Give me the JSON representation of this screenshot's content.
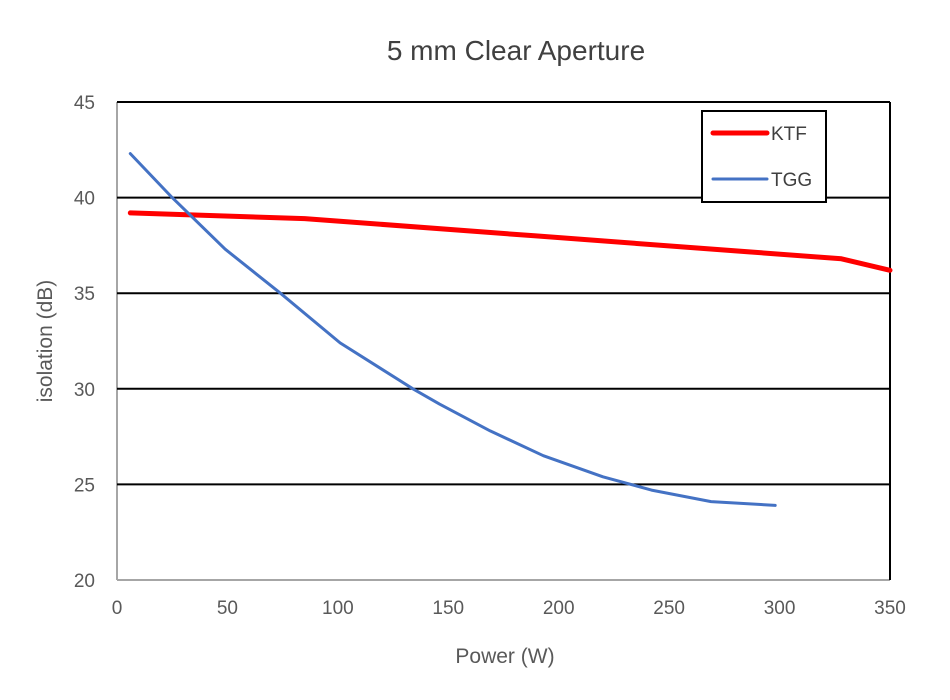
{
  "chart_data": {
    "type": "line",
    "title": "5 mm Clear Aperture",
    "xlabel": "Power (W)",
    "ylabel": "isolation (dB)",
    "xlim": [
      0,
      350
    ],
    "ylim": [
      20,
      45
    ],
    "xticks": [
      "0",
      "50",
      "100",
      "150",
      "200",
      "250",
      "300",
      "350"
    ],
    "yticks": [
      "20",
      "25",
      "30",
      "35",
      "40",
      "45"
    ],
    "grid": "horizontal",
    "legend_position": "top-right",
    "series": [
      {
        "name": "KTF",
        "color": "#ff0000",
        "x": [
          6,
          85,
          189,
          328,
          350
        ],
        "y": [
          39.2,
          38.9,
          38.0,
          36.8,
          36.2
        ]
      },
      {
        "name": "TGG",
        "color": "#4472c4",
        "x": [
          6,
          25,
          49,
          74,
          101,
          134,
          146,
          169,
          193,
          220,
          242,
          269,
          298
        ],
        "y": [
          42.3,
          40.0,
          37.3,
          35.0,
          32.4,
          30.0,
          29.2,
          27.8,
          26.5,
          25.4,
          24.7,
          24.1,
          23.9
        ]
      }
    ]
  }
}
